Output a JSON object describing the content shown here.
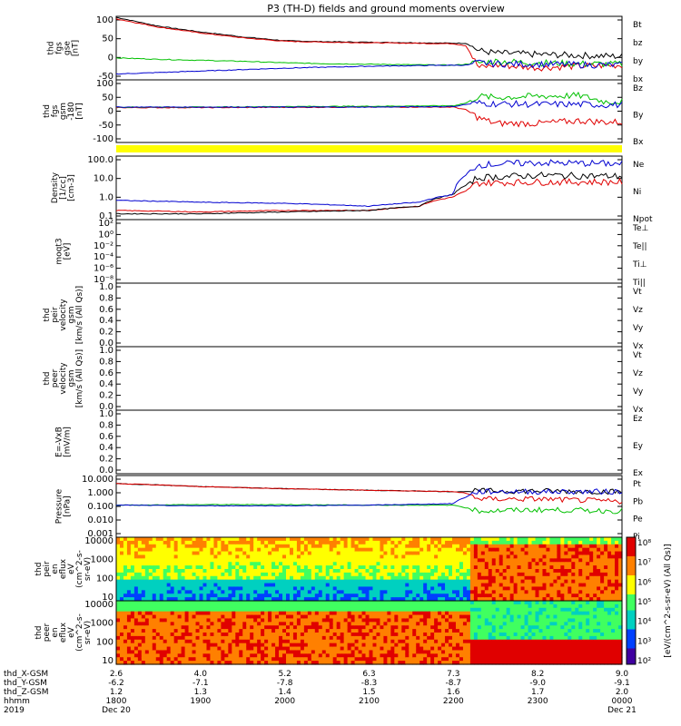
{
  "title": "P3 (TH-D) fields and ground moments overview",
  "colors": {
    "black": "#000000",
    "red": "#e00000",
    "green": "#00c000",
    "blue": "#0000d0",
    "yellow": "#ffff00"
  },
  "chart_data": [
    {
      "type": "line",
      "id": "fgs",
      "ylabel": [
        "thd",
        "fgs",
        "gse",
        "[nT]"
      ],
      "ylim": [
        -30,
        100
      ],
      "yticks": [
        "100",
        "50",
        "0",
        "-50"
      ],
      "x_hours": [
        18.0,
        18.5,
        19.0,
        19.5,
        20.0,
        20.5,
        21.0,
        21.5,
        22.0,
        22.15,
        22.3,
        22.5,
        23.0,
        23.5,
        24.0
      ],
      "series": [
        {
          "name": "Bt",
          "color": "#000000",
          "values": [
            98,
            80,
            68,
            58,
            50,
            48,
            47,
            46,
            45,
            45,
            30,
            25,
            22,
            20,
            18
          ]
        },
        {
          "name": "bz",
          "color": "#e00000",
          "values": [
            95,
            78,
            66,
            56,
            49,
            47,
            46,
            45,
            44,
            40,
            -5,
            0,
            -5,
            -2,
            0
          ]
        },
        {
          "name": "by",
          "color": "#00c000",
          "values": [
            15,
            12,
            10,
            8,
            5,
            3,
            2,
            1,
            0,
            2,
            5,
            8,
            5,
            3,
            2
          ]
        },
        {
          "name": "bx",
          "color": "#0000d0",
          "values": [
            -18,
            -15,
            -12,
            -9,
            -6,
            -4,
            -2,
            -1,
            0,
            0,
            5,
            3,
            2,
            1,
            0
          ]
        }
      ]
    },
    {
      "type": "line",
      "id": "fgs_gsm",
      "ylabel": [
        "thd",
        "fgs",
        "gsm",
        "-180",
        "[nT]"
      ],
      "ylim": [
        -130,
        100
      ],
      "yticks": [
        "100",
        "50",
        "0",
        "-50",
        "-100"
      ],
      "x_hours": [
        18.0,
        19.0,
        20.0,
        21.0,
        22.0,
        22.15,
        22.3,
        22.5,
        23.0,
        23.5,
        23.8,
        24.0
      ],
      "series": [
        {
          "name": "Bz",
          "color": "#e00000",
          "values": [
            -2,
            -2,
            -1,
            0,
            0,
            -10,
            -40,
            -60,
            -60,
            -50,
            -55,
            -55
          ]
        },
        {
          "name": "By",
          "color": "#00c000",
          "values": [
            0,
            0,
            2,
            3,
            5,
            15,
            40,
            35,
            40,
            42,
            20,
            20
          ]
        },
        {
          "name": "Bx",
          "color": "#0000d0",
          "values": [
            0,
            0,
            0,
            0,
            2,
            10,
            15,
            12,
            10,
            10,
            8,
            8
          ]
        }
      ]
    },
    {
      "type": "line",
      "id": "density",
      "ylabel": [
        "Density",
        "[1/cc]",
        "[cm-3]"
      ],
      "scale": "log",
      "ylim": [
        0.1,
        200
      ],
      "yticks": [
        "100.0",
        "10.0",
        "1.0",
        "0.1"
      ],
      "x_hours": [
        18.0,
        19.0,
        20.0,
        21.0,
        21.6,
        22.0,
        22.15,
        22.3,
        23.0,
        24.0
      ],
      "series": [
        {
          "name": "Ne",
          "color": "#e00000",
          "values": [
            0.3,
            0.25,
            0.3,
            0.3,
            0.5,
            1.5,
            3.0,
            8.0,
            9.0,
            9.0
          ]
        },
        {
          "name": "Ni",
          "color": "#000000",
          "values": [
            0.2,
            0.2,
            0.25,
            0.3,
            0.5,
            2.0,
            6.0,
            15,
            20,
            18
          ]
        },
        {
          "name": "Npot",
          "color": "#0000d0",
          "values": [
            1.0,
            0.8,
            0.7,
            0.5,
            0.8,
            2.0,
            20,
            70,
            90,
            80
          ]
        }
      ]
    },
    {
      "type": "line",
      "id": "temperature",
      "ylabel": [
        "moqt3",
        "[eV]"
      ],
      "scale": "log",
      "yticks": [
        "10²",
        "10⁰",
        "10⁻²",
        "10⁻⁴",
        "10⁻⁶",
        "10⁻⁸"
      ],
      "series": [
        {
          "name": "Te⊥",
          "color": "#e00000"
        },
        {
          "name": "Te||",
          "color": "#000000"
        },
        {
          "name": "Ti⊥",
          "color": "#00c000"
        },
        {
          "name": "Ti||",
          "color": "#00c000"
        }
      ]
    },
    {
      "type": "line",
      "id": "peir_velocity",
      "ylabel": [
        "thd",
        "peir",
        "velocity",
        "gsm",
        "[km/s (All Qs)]"
      ],
      "ylim": [
        0,
        1
      ],
      "yticks": [
        "1.0",
        "0.8",
        "0.6",
        "0.4",
        "0.2",
        "0.0"
      ],
      "series": [
        {
          "name": "Vt",
          "color": "#000000"
        },
        {
          "name": "Vz",
          "color": "#e00000"
        },
        {
          "name": "Vy",
          "color": "#00c000"
        },
        {
          "name": "Vx",
          "color": "#0000d0"
        }
      ]
    },
    {
      "type": "line",
      "id": "peer_velocity",
      "ylabel": [
        "thd",
        "peer",
        "velocity",
        "gsm",
        "[km/s (All Qs)]"
      ],
      "ylim": [
        0,
        1
      ],
      "yticks": [
        "1.0",
        "0.8",
        "0.6",
        "0.4",
        "0.2",
        "0.0"
      ],
      "series": [
        {
          "name": "Vt",
          "color": "#000000"
        },
        {
          "name": "Vz",
          "color": "#e00000"
        },
        {
          "name": "Vy",
          "color": "#00c000"
        },
        {
          "name": "Vx",
          "color": "#0000d0"
        }
      ]
    },
    {
      "type": "line",
      "id": "efield",
      "ylabel": [
        "E=-VxB",
        "[mV/m]"
      ],
      "ylim": [
        0,
        1
      ],
      "yticks": [
        "1.0",
        "0.8",
        "0.6",
        "0.4",
        "0.2",
        "0.0"
      ],
      "series": [
        {
          "name": "Ez",
          "color": "#e00000"
        },
        {
          "name": "Ey",
          "color": "#00c000"
        },
        {
          "name": "Ex",
          "color": "#0000d0"
        }
      ]
    },
    {
      "type": "line",
      "id": "pressure",
      "ylabel": [
        "Pressure",
        "[nPa]"
      ],
      "scale": "log",
      "ylim": [
        0.001,
        10
      ],
      "yticks": [
        "10.000",
        "1.000",
        "0.100",
        "0.010",
        "0.001"
      ],
      "x_hours": [
        18.0,
        19.0,
        20.0,
        21.0,
        22.0,
        22.15,
        22.3,
        23.0,
        24.0
      ],
      "series": [
        {
          "name": "Pt",
          "color": "#000000",
          "values": [
            3.0,
            1.9,
            1.4,
            1.1,
            0.9,
            0.9,
            1.0,
            1.0,
            0.9
          ]
        },
        {
          "name": "Pb",
          "color": "#e00000",
          "values": [
            3.0,
            1.9,
            1.4,
            1.1,
            0.9,
            0.7,
            0.3,
            0.3,
            0.2
          ]
        },
        {
          "name": "Pe",
          "color": "#00c000",
          "values": [
            0.12,
            0.13,
            0.13,
            0.12,
            0.12,
            0.08,
            0.05,
            0.06,
            0.05
          ]
        },
        {
          "name": "Pi",
          "color": "#0000d0",
          "values": [
            0.12,
            0.11,
            0.11,
            0.12,
            0.15,
            0.4,
            0.9,
            0.9,
            0.9
          ]
        }
      ]
    },
    {
      "type": "heatmap",
      "id": "peir_eflux",
      "ylabel": [
        "thd",
        "peir",
        "en",
        "eflux",
        "eV",
        "(cm^2-s-",
        "sr-eV)"
      ],
      "yticks": [
        "10000",
        "1000",
        "100",
        "10"
      ]
    },
    {
      "type": "heatmap",
      "id": "peer_eflux",
      "ylabel": [
        "thd",
        "peer",
        "en",
        "eflux",
        "eV",
        "(cm^2-s-",
        "sr-eV)"
      ],
      "yticks": [
        "10000",
        "1000",
        "100",
        "10"
      ]
    }
  ],
  "colorbar": {
    "label": "[eV/(cm^2-s-sr-eV) (All Qs)]",
    "ticks": [
      "10⁸",
      "10⁷",
      "10⁶",
      "10⁵",
      "10⁴",
      "10³",
      "10²"
    ]
  },
  "x_axis": {
    "rows": [
      {
        "label": "thd_X-GSM",
        "values": [
          "2.6",
          "4.0",
          "5.2",
          "6.3",
          "7.3",
          "8.2",
          "9.0"
        ]
      },
      {
        "label": "thd_Y-GSM",
        "values": [
          "-6.2",
          "-7.1",
          "-7.8",
          "-8.3",
          "-8.7",
          "-9.0",
          "-9.1"
        ]
      },
      {
        "label": "thd_Z-GSM",
        "values": [
          "1.2",
          "1.3",
          "1.4",
          "1.5",
          "1.6",
          "1.7",
          "2.0"
        ]
      },
      {
        "label": "hhmm",
        "values": [
          "1800",
          "1900",
          "2000",
          "2100",
          "2200",
          "2300",
          "0000"
        ]
      },
      {
        "label": "2019",
        "values": [
          "Dec 20",
          "",
          "",
          "",
          "",
          "",
          "Dec 21"
        ]
      }
    ]
  }
}
